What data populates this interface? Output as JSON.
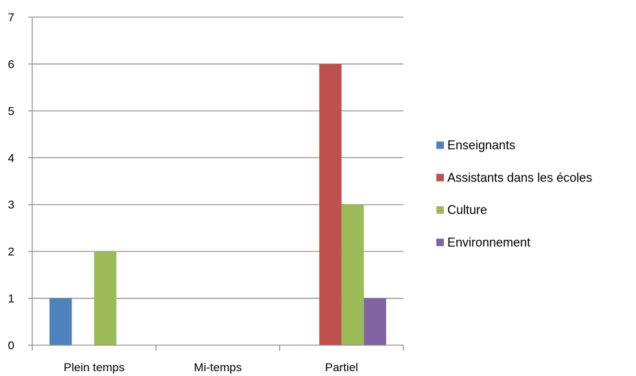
{
  "chart_data": {
    "type": "bar",
    "categories": [
      "Plein temps",
      "Mi-temps",
      "Partiel"
    ],
    "series": [
      {
        "name": "Enseignants",
        "values": [
          1,
          0,
          0
        ],
        "color": "#4F81BD"
      },
      {
        "name": "Assistants dans les écoles",
        "values": [
          0,
          0,
          6
        ],
        "color": "#C0504D"
      },
      {
        "name": "Culture",
        "values": [
          2,
          0,
          3
        ],
        "color": "#9BBB59"
      },
      {
        "name": "Environnement",
        "values": [
          0,
          0,
          1
        ],
        "color": "#8064A2"
      }
    ],
    "ylim": [
      0,
      7
    ],
    "yticks": [
      0,
      1,
      2,
      3,
      4,
      5,
      6,
      7
    ],
    "grid": true,
    "legend": "right"
  }
}
